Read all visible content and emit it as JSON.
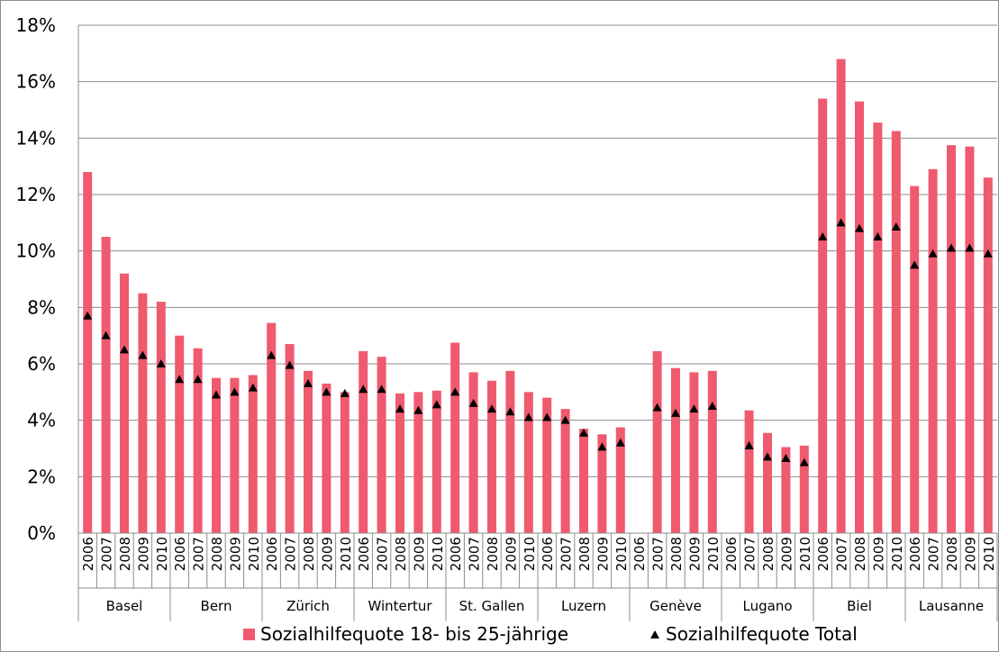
{
  "chart_data": {
    "type": "bar",
    "title": "",
    "xlabel": "",
    "ylabel": "",
    "ylim": [
      0,
      18
    ],
    "y_ticks": [
      "0%",
      "2%",
      "4%",
      "6%",
      "8%",
      "10%",
      "12%",
      "14%",
      "16%",
      "18%"
    ],
    "grid": true,
    "legend_position": "bottom",
    "colors": {
      "bar": "#EF5A6E",
      "marker": "#000000",
      "grid": "#8c8c8c"
    },
    "years": [
      "2006",
      "2007",
      "2008",
      "2009",
      "2010"
    ],
    "groups": [
      {
        "name": "Basel",
        "bars": [
          12.8,
          10.5,
          9.2,
          8.5,
          8.2
        ],
        "total": [
          7.7,
          7.0,
          6.5,
          6.3,
          6.0
        ]
      },
      {
        "name": "Bern",
        "bars": [
          7.0,
          6.55,
          5.5,
          5.5,
          5.6
        ],
        "total": [
          5.45,
          5.45,
          4.9,
          5.0,
          5.15
        ]
      },
      {
        "name": "Zürich",
        "bars": [
          7.45,
          6.7,
          5.75,
          5.3,
          5.0
        ],
        "total": [
          6.3,
          5.95,
          5.3,
          5.0,
          4.95
        ]
      },
      {
        "name": "Wintertur",
        "bars": [
          6.45,
          6.25,
          4.95,
          5.0,
          5.05
        ],
        "total": [
          5.1,
          5.1,
          4.4,
          4.35,
          4.55
        ]
      },
      {
        "name": "St. Gallen",
        "bars": [
          6.75,
          5.7,
          5.4,
          5.75,
          5.0
        ],
        "total": [
          5.0,
          4.6,
          4.4,
          4.3,
          4.1
        ]
      },
      {
        "name": "Luzern",
        "bars": [
          4.8,
          4.4,
          3.7,
          3.5,
          3.75
        ],
        "total": [
          4.1,
          4.0,
          3.55,
          3.05,
          3.2
        ]
      },
      {
        "name": "Genève",
        "bars": [
          null,
          6.45,
          5.85,
          5.7,
          5.75
        ],
        "total": [
          null,
          4.45,
          4.25,
          4.4,
          4.5
        ]
      },
      {
        "name": "Lugano",
        "bars": [
          null,
          4.35,
          3.55,
          3.05,
          3.1
        ],
        "total": [
          null,
          3.1,
          2.7,
          2.65,
          2.5
        ]
      },
      {
        "name": "Biel",
        "bars": [
          15.4,
          16.8,
          15.3,
          14.55,
          14.25
        ],
        "total": [
          10.5,
          11.0,
          10.8,
          10.5,
          10.85
        ]
      },
      {
        "name": "Lausanne",
        "bars": [
          12.3,
          12.9,
          13.75,
          13.7,
          12.6
        ],
        "total": [
          9.5,
          9.9,
          10.1,
          10.1,
          9.9
        ]
      }
    ],
    "series": [
      {
        "name": "Sozialhilfequote 18- bis 25-jährige",
        "type": "bar"
      },
      {
        "name": "Sozialhilfequote Total",
        "type": "marker"
      }
    ]
  },
  "legend": {
    "bar_label": "Sozialhilfequote 18- bis 25-jährige",
    "marker_label": "Sozialhilfequote Total"
  }
}
